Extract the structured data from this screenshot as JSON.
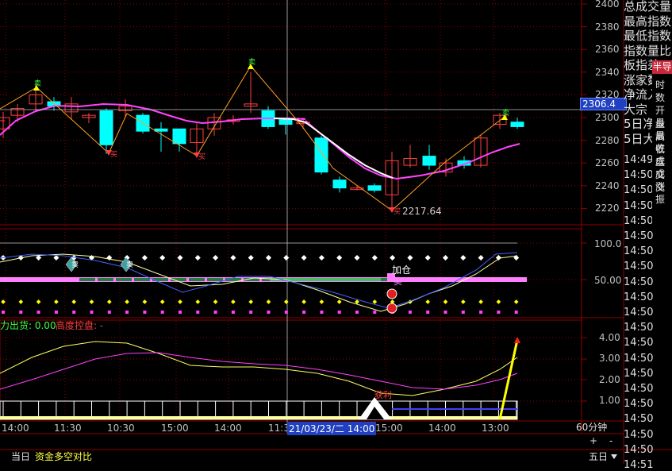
{
  "colors": {
    "background": "#000000",
    "grid": "#8b0000",
    "up_candle": "#00ffff",
    "down_candle": "#ff4040",
    "ma_main": "#ff44ff",
    "ma_white": "#ffffff",
    "zigzag": "#ffa020",
    "price_highlight": "#2040c0"
  },
  "price_axis": {
    "ticks": [
      "2400",
      "2380",
      "2360",
      "2340",
      "2320",
      "2300",
      "2280",
      "2260",
      "2240",
      "2220"
    ],
    "current_price": "2306.4"
  },
  "price_chart": {
    "low_annotation": "2217.64",
    "buy_label": "买",
    "sell_label": "卖",
    "buy_icon": "up-arrow-icon",
    "sell_icon": "down-arrow-icon"
  },
  "indicator_axis": {
    "ticks": [
      "100.0",
      "50.00"
    ]
  },
  "indicator_panel": {
    "add_position_label": "加仓",
    "sell_tag": "卖",
    "marker_icon": "balloon-icon"
  },
  "lower_panel": {
    "title_part1": "力出货: 0.00",
    "title_part2": "高度控盘: -",
    "ticks": [
      "4.00",
      "3.00",
      "2.00",
      "1.00"
    ],
    "profit_label": "获利"
  },
  "x_axis": {
    "labels": [
      "14:00",
      "11:30",
      "10:30",
      "15:00",
      "14:00",
      "11:3",
      "15:00",
      "14:00",
      "13:00"
    ],
    "crosshair_label": "21/03/23/二 14:00"
  },
  "right_panel": {
    "info_lines": [
      "总成交量",
      "最高指数",
      "最低指数",
      "指数量比",
      "板指差",
      "涨家数",
      "净流入",
      "大宗",
      "5日净",
      "5日大"
    ],
    "time_items": [
      "14:49",
      "14:50",
      "14:50",
      "14:50",
      "14:50",
      "14:50",
      "14:50",
      "14:50",
      "14:50",
      "14:50",
      "14:50",
      "14:50",
      "14:50",
      "14:50",
      "14:50",
      "14:50",
      "14:50",
      "14:50",
      "14:50",
      "14:50",
      "14:51"
    ],
    "half_button": "半导",
    "side_tabs": [
      "时",
      "数",
      "开盘",
      "最高",
      "最低",
      "收盘",
      "成交",
      "成交",
      "涨",
      "振"
    ],
    "period": "60分钟",
    "zoom_in": "+",
    "zoom_out": "-",
    "weekday": "五日"
  },
  "bottom_bar": {
    "tab_today": "当日",
    "tab_money": "资金多空对比"
  }
}
